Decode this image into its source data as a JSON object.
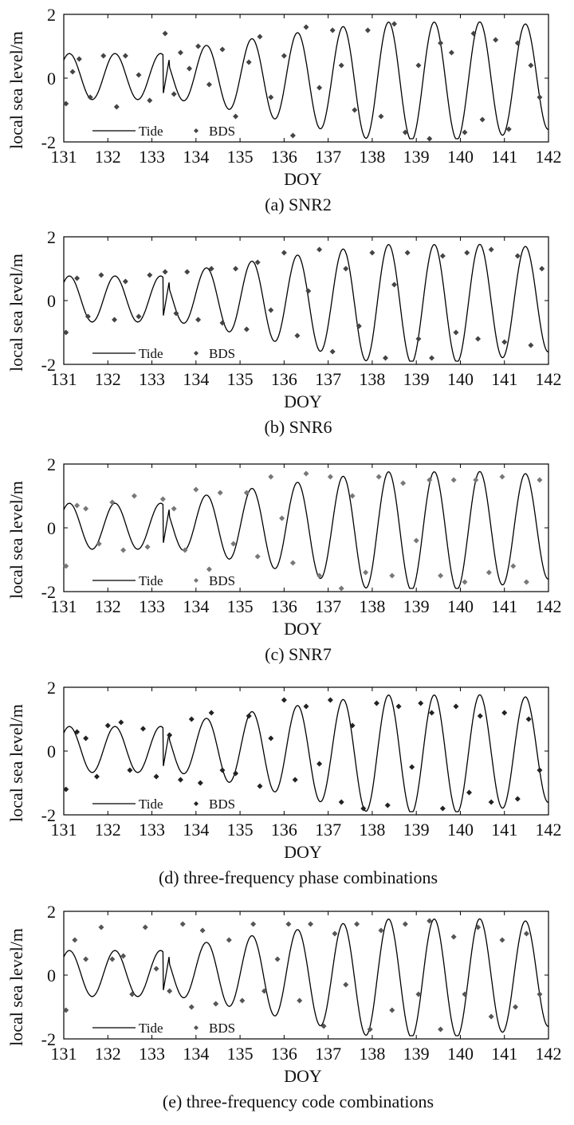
{
  "chart_data": [
    {
      "type": "line",
      "caption": "(a) SNR2",
      "xlabel": "DOY",
      "ylabel": "local sea level/m",
      "xlim": [
        131,
        142
      ],
      "ylim": [
        -2,
        2
      ],
      "xticks": [
        131,
        132,
        133,
        134,
        135,
        136,
        137,
        138,
        139,
        140,
        141,
        142
      ],
      "yticks": [
        -2,
        0,
        2
      ],
      "legend": {
        "placement": "bottom-left"
      },
      "series": [
        {
          "name": "Tide",
          "style": "line",
          "color": "#000000",
          "model": "semidiurnal tide: amplitude ~0.7 m on DOY 131-133, rising to ~1.8 m by DOY 138-140; step near DOY 133.3"
        },
        {
          "name": "BDS",
          "style": "markers",
          "color": "#444444",
          "x": [
            131.05,
            131.2,
            131.35,
            131.6,
            131.9,
            132.2,
            132.4,
            132.7,
            132.95,
            133.3,
            133.5,
            133.65,
            133.85,
            134.05,
            134.3,
            134.6,
            134.9,
            135.2,
            135.45,
            135.7,
            136.0,
            136.2,
            136.5,
            136.8,
            137.1,
            137.3,
            137.6,
            137.9,
            138.2,
            138.5,
            138.75,
            139.05,
            139.3,
            139.55,
            139.8,
            140.1,
            140.3,
            140.5,
            140.8,
            141.1,
            141.3,
            141.6,
            141.8
          ],
          "y": [
            -0.8,
            0.2,
            0.6,
            -0.6,
            0.7,
            -0.9,
            0.7,
            0.1,
            -0.7,
            1.4,
            -0.5,
            0.8,
            0.3,
            1.0,
            -0.2,
            0.9,
            -1.2,
            0.5,
            1.3,
            -0.6,
            0.7,
            -1.8,
            1.6,
            -0.3,
            1.5,
            0.4,
            -1.0,
            1.5,
            -1.2,
            1.7,
            -1.7,
            0.4,
            -1.9,
            1.1,
            0.8,
            -1.7,
            1.4,
            -1.3,
            1.2,
            -1.6,
            1.1,
            0.4,
            -0.6
          ]
        }
      ]
    },
    {
      "type": "line",
      "caption": "(b) SNR6",
      "xlabel": "DOY",
      "ylabel": "local sea level/m",
      "xlim": [
        131,
        142
      ],
      "ylim": [
        -2,
        2
      ],
      "xticks": [
        131,
        132,
        133,
        134,
        135,
        136,
        137,
        138,
        139,
        140,
        141,
        142
      ],
      "yticks": [
        -2,
        0,
        2
      ],
      "legend": {
        "placement": "bottom-left"
      },
      "series": [
        {
          "name": "Tide",
          "style": "line",
          "color": "#000000"
        },
        {
          "name": "BDS",
          "style": "markers",
          "color": "#444444",
          "x": [
            131.05,
            131.3,
            131.55,
            131.85,
            132.15,
            132.4,
            132.7,
            132.95,
            133.3,
            133.55,
            133.8,
            134.05,
            134.35,
            134.6,
            134.9,
            135.15,
            135.4,
            135.7,
            136.0,
            136.3,
            136.55,
            136.8,
            137.1,
            137.4,
            137.7,
            138.0,
            138.3,
            138.5,
            138.8,
            139.05,
            139.35,
            139.6,
            139.9,
            140.15,
            140.4,
            140.7,
            141.0,
            141.3,
            141.6,
            141.85
          ],
          "y": [
            -1.0,
            0.7,
            -0.5,
            0.8,
            -0.6,
            0.6,
            -0.5,
            0.8,
            0.9,
            -0.4,
            0.9,
            -0.6,
            1.0,
            -0.7,
            1.0,
            -0.9,
            1.2,
            -0.3,
            1.5,
            -1.1,
            0.3,
            1.6,
            -1.6,
            1.0,
            -0.8,
            1.5,
            -1.8,
            0.5,
            1.5,
            -1.2,
            -1.8,
            1.4,
            -1.0,
            1.5,
            -1.2,
            1.6,
            -1.3,
            1.4,
            -1.4,
            1.0
          ]
        }
      ]
    },
    {
      "type": "line",
      "caption": "(c) SNR7",
      "xlabel": "DOY",
      "ylabel": "local sea level/m",
      "xlim": [
        131,
        142
      ],
      "ylim": [
        -2,
        2
      ],
      "xticks": [
        131,
        132,
        133,
        134,
        135,
        136,
        137,
        138,
        139,
        140,
        141,
        142
      ],
      "yticks": [
        -2,
        0,
        2
      ],
      "legend": {
        "placement": "bottom-left"
      },
      "series": [
        {
          "name": "Tide",
          "style": "line",
          "color": "#000000"
        },
        {
          "name": "BDS",
          "style": "markers",
          "color": "#777777",
          "x": [
            131.05,
            131.3,
            131.5,
            131.8,
            132.1,
            132.35,
            132.6,
            132.9,
            133.25,
            133.5,
            133.75,
            134.0,
            134.3,
            134.55,
            134.85,
            135.15,
            135.4,
            135.7,
            135.95,
            136.2,
            136.5,
            136.8,
            137.05,
            137.3,
            137.55,
            137.85,
            138.15,
            138.45,
            138.7,
            139.0,
            139.3,
            139.55,
            139.85,
            140.1,
            140.35,
            140.65,
            140.95,
            141.2,
            141.5,
            141.8
          ],
          "y": [
            -1.2,
            0.7,
            0.6,
            -0.5,
            0.8,
            -0.7,
            1.0,
            -0.6,
            0.9,
            0.6,
            -0.7,
            1.2,
            -1.3,
            1.1,
            -0.5,
            1.1,
            -0.9,
            1.6,
            0.3,
            -1.1,
            1.7,
            -1.5,
            1.6,
            -1.9,
            1.0,
            -1.4,
            1.6,
            -1.5,
            1.4,
            -0.4,
            1.5,
            -1.5,
            1.5,
            -1.7,
            1.5,
            -1.4,
            1.6,
            -1.2,
            -1.7,
            1.5
          ]
        }
      ]
    },
    {
      "type": "line",
      "caption": "(d) three-frequency phase combinations",
      "xlabel": "DOY",
      "ylabel": "local sea level/m",
      "xlim": [
        131,
        142
      ],
      "ylim": [
        -2,
        2
      ],
      "xticks": [
        131,
        132,
        133,
        134,
        135,
        136,
        137,
        138,
        139,
        140,
        141,
        142
      ],
      "yticks": [
        -2,
        0,
        2
      ],
      "legend": {
        "placement": "bottom-left"
      },
      "series": [
        {
          "name": "Tide",
          "style": "line",
          "color": "#000000"
        },
        {
          "name": "BDS",
          "style": "markers",
          "color": "#222222",
          "x": [
            131.05,
            131.3,
            131.5,
            131.75,
            132.0,
            132.3,
            132.5,
            132.8,
            133.1,
            133.4,
            133.65,
            133.9,
            134.1,
            134.35,
            134.6,
            134.9,
            135.2,
            135.45,
            135.7,
            136.0,
            136.25,
            136.5,
            136.8,
            137.05,
            137.3,
            137.55,
            137.8,
            138.1,
            138.35,
            138.6,
            138.9,
            139.1,
            139.35,
            139.6,
            139.9,
            140.2,
            140.45,
            140.7,
            141.0,
            141.3,
            141.55,
            141.8
          ],
          "y": [
            -1.2,
            0.6,
            0.4,
            -0.8,
            0.8,
            0.9,
            -0.6,
            0.7,
            -0.8,
            0.5,
            -0.9,
            1.0,
            -1.0,
            1.2,
            -0.6,
            -0.7,
            1.1,
            -1.1,
            0.4,
            1.6,
            -0.9,
            1.4,
            -0.4,
            1.6,
            -1.6,
            0.8,
            -1.8,
            1.5,
            -1.7,
            1.4,
            -0.5,
            1.5,
            1.2,
            -1.8,
            1.4,
            -1.3,
            1.1,
            -1.6,
            1.2,
            -1.5,
            1.0,
            -0.6
          ]
        }
      ]
    },
    {
      "type": "line",
      "caption": "(e) three-frequency code combinations",
      "xlabel": "DOY",
      "ylabel": "local sea level/m",
      "xlim": [
        131,
        142
      ],
      "ylim": [
        -2,
        2
      ],
      "xticks": [
        131,
        132,
        133,
        134,
        135,
        136,
        137,
        138,
        139,
        140,
        141,
        142
      ],
      "yticks": [
        -2,
        0,
        2
      ],
      "legend": {
        "placement": "bottom-left"
      },
      "series": [
        {
          "name": "Tide",
          "style": "line",
          "color": "#000000"
        },
        {
          "name": "BDS",
          "style": "markers",
          "color": "#555555",
          "x": [
            131.05,
            131.25,
            131.5,
            131.85,
            132.1,
            132.35,
            132.55,
            132.85,
            133.1,
            133.4,
            133.7,
            133.9,
            134.15,
            134.45,
            134.75,
            135.05,
            135.3,
            135.55,
            135.85,
            136.1,
            136.35,
            136.6,
            136.9,
            137.15,
            137.4,
            137.65,
            137.95,
            138.2,
            138.45,
            138.75,
            139.05,
            139.3,
            139.55,
            139.85,
            140.1,
            140.4,
            140.7,
            140.95,
            141.25,
            141.5,
            141.8
          ],
          "y": [
            -1.1,
            1.1,
            0.5,
            1.5,
            0.5,
            0.6,
            -0.6,
            1.5,
            0.2,
            -0.5,
            1.6,
            -1.0,
            1.4,
            -0.9,
            1.1,
            -0.8,
            1.6,
            -0.5,
            0.5,
            1.6,
            -0.8,
            1.6,
            -1.6,
            1.3,
            -0.3,
            1.6,
            -1.7,
            1.4,
            -1.1,
            1.6,
            -0.6,
            1.7,
            -1.7,
            1.2,
            -0.6,
            1.5,
            -1.3,
            1.1,
            -1.0,
            1.3,
            -0.6
          ]
        }
      ]
    }
  ]
}
